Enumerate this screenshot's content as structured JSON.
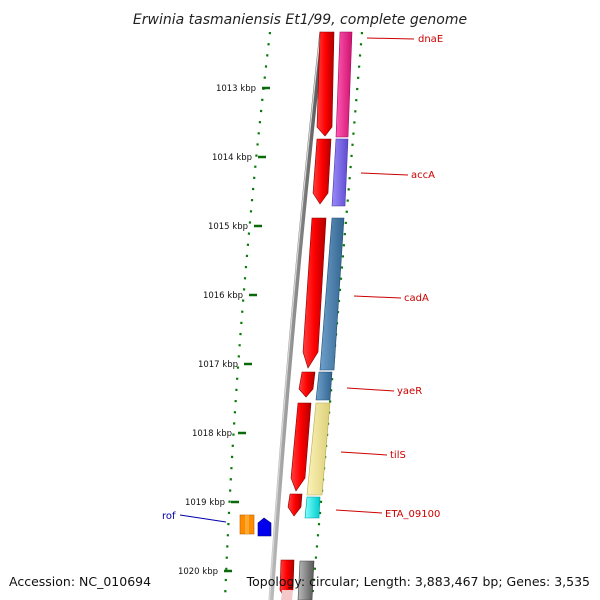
{
  "title": "Erwinia tasmaniensis Et1/99, complete genome",
  "footer": {
    "accession": "Accession: NC_010694",
    "topology": "Topology: circular; Length: 3,883,467 bp; Genes: 3,535"
  },
  "ruler_labels": [
    "1013 kbp",
    "1014 kbp",
    "1015 kbp",
    "1016 kbp",
    "1017 kbp",
    "1018 kbp",
    "1019 kbp",
    "1020 kbp"
  ],
  "genes": [
    {
      "name": "dnaE",
      "color": "#ff1493"
    },
    {
      "name": "accA",
      "color": "#7b68ee"
    },
    {
      "name": "cadA",
      "color": "#4682b4"
    },
    {
      "name": "yaeR",
      "color": "#4682b4"
    },
    {
      "name": "tilS",
      "color": "#f0e68c"
    },
    {
      "name": "ETA_09100",
      "color": "#00ffff"
    },
    {
      "name": "rof",
      "color": "#0000ff"
    }
  ],
  "colors": {
    "cds": "#e00000",
    "backbone": "#888888",
    "tick": "#006400",
    "label": "#cc0000",
    "rof_label": "#0000aa",
    "rof_orange": "#ff8c00"
  }
}
